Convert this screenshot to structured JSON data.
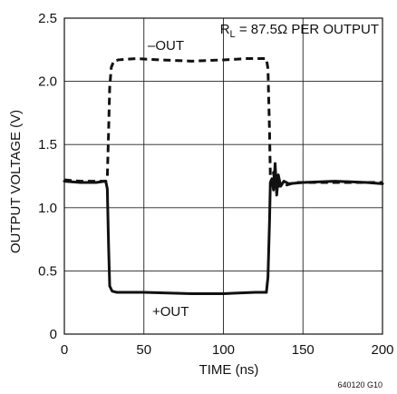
{
  "chart_data": {
    "type": "line",
    "xlabel": "TIME (ns)",
    "ylabel": "OUTPUT VOLTAGE (V)",
    "xlim": [
      0,
      200
    ],
    "ylim": [
      0,
      2.5
    ],
    "x_ticks": [
      {
        "value": 0,
        "label": "0"
      },
      {
        "value": 50,
        "label": "50"
      },
      {
        "value": 100,
        "label": "100"
      },
      {
        "value": 150,
        "label": "150"
      },
      {
        "value": 200,
        "label": "200"
      }
    ],
    "y_ticks": [
      {
        "value": 0,
        "label": "0"
      },
      {
        "value": 0.5,
        "label": "0.5"
      },
      {
        "value": 1.0,
        "label": "1.0"
      },
      {
        "value": 1.5,
        "label": "1.5"
      },
      {
        "value": 2.0,
        "label": "2.0"
      },
      {
        "value": 2.5,
        "label": "2.5"
      }
    ],
    "grid": true,
    "annotation": {
      "prefix": "R",
      "subscript": "L",
      "suffix": " = 87.5Ω PER OUTPUT"
    },
    "figure_code": "640120 G10",
    "series": [
      {
        "name": "–OUT",
        "style": "dashed",
        "color": "#111111",
        "points": [
          [
            0,
            1.22
          ],
          [
            10,
            1.21
          ],
          [
            20,
            1.21
          ],
          [
            26,
            1.21
          ],
          [
            27,
            1.24
          ],
          [
            27.8,
            1.6
          ],
          [
            28.5,
            1.95
          ],
          [
            29.5,
            2.11
          ],
          [
            31,
            2.16
          ],
          [
            34,
            2.17
          ],
          [
            45,
            2.18
          ],
          [
            60,
            2.17
          ],
          [
            80,
            2.16
          ],
          [
            100,
            2.17
          ],
          [
            115,
            2.18
          ],
          [
            127,
            2.18
          ],
          [
            128,
            2.1
          ],
          [
            129,
            1.6
          ],
          [
            129.5,
            1.25
          ],
          [
            130.5,
            1.2
          ],
          [
            131.5,
            1.28
          ],
          [
            132.5,
            1.18
          ],
          [
            133.5,
            1.22
          ],
          [
            135,
            1.17
          ],
          [
            137,
            1.2
          ],
          [
            140,
            1.18
          ],
          [
            145,
            1.2
          ],
          [
            160,
            1.2
          ],
          [
            180,
            1.2
          ],
          [
            200,
            1.2
          ]
        ]
      },
      {
        "name": "+OUT",
        "style": "solid",
        "color": "#111111",
        "points": [
          [
            0,
            1.21
          ],
          [
            10,
            1.2
          ],
          [
            20,
            1.2
          ],
          [
            26,
            1.21
          ],
          [
            27,
            1.15
          ],
          [
            27.8,
            0.7
          ],
          [
            28.5,
            0.38
          ],
          [
            30,
            0.34
          ],
          [
            33,
            0.33
          ],
          [
            50,
            0.33
          ],
          [
            80,
            0.32
          ],
          [
            100,
            0.32
          ],
          [
            120,
            0.33
          ],
          [
            127,
            0.33
          ],
          [
            128,
            0.45
          ],
          [
            129,
            0.9
          ],
          [
            129.5,
            1.2
          ],
          [
            130.5,
            1.23
          ],
          [
            131.5,
            1.14
          ],
          [
            132.5,
            1.35
          ],
          [
            133.5,
            1.1
          ],
          [
            134.5,
            1.26
          ],
          [
            136,
            1.17
          ],
          [
            138,
            1.21
          ],
          [
            141,
            1.19
          ],
          [
            150,
            1.2
          ],
          [
            170,
            1.21
          ],
          [
            190,
            1.2
          ],
          [
            200,
            1.19
          ]
        ]
      }
    ],
    "series_labels": [
      {
        "text": "–OUT",
        "series": 0
      },
      {
        "text": "+OUT",
        "series": 1
      }
    ]
  }
}
